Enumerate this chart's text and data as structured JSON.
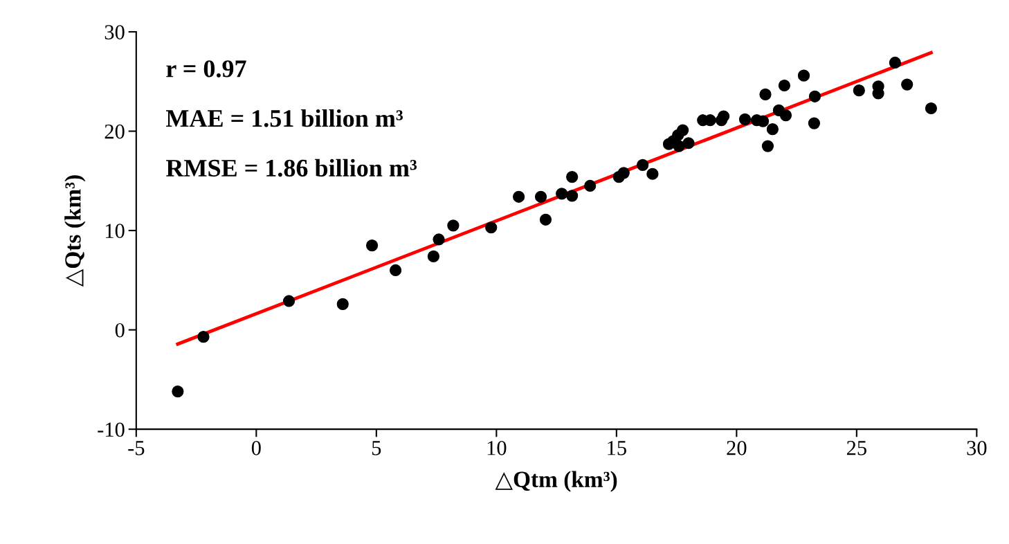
{
  "chart_data": {
    "type": "scatter",
    "xlabel": "△Qtm (km³)",
    "ylabel": "△Qts (km³)",
    "xlim": [
      -5,
      30
    ],
    "xticks": [
      -5,
      0,
      5,
      10,
      15,
      20,
      25,
      30
    ],
    "ylim": [
      -10,
      30
    ],
    "yticks": [
      -10,
      0,
      10,
      20,
      30
    ],
    "grid": false,
    "legend": false,
    "series": [
      {
        "marker": "circle",
        "color": "#000000",
        "x": [
          -3.27,
          -2.2,
          1.36,
          3.6,
          4.82,
          5.8,
          7.38,
          7.6,
          8.2,
          9.78,
          10.93,
          11.85,
          12.05,
          12.72,
          13.15,
          13.15,
          13.9,
          15.1,
          15.3,
          16.09,
          16.5,
          17.18,
          17.36,
          17.56,
          17.76,
          17.6,
          18.0,
          18.6,
          18.9,
          19.37,
          19.46,
          20.35,
          20.84,
          21.1,
          21.2,
          21.3,
          21.5,
          21.76,
          21.99,
          22.05,
          22.8,
          23.26,
          23.23,
          25.1,
          25.9,
          25.9,
          26.6,
          27.1,
          28.1
        ],
        "values": [
          -6.2,
          -0.7,
          2.9,
          2.6,
          8.5,
          6.0,
          7.4,
          9.1,
          10.5,
          10.3,
          13.4,
          13.4,
          11.1,
          13.7,
          13.5,
          15.4,
          14.5,
          15.4,
          15.8,
          16.6,
          15.7,
          18.7,
          19.0,
          19.6,
          20.1,
          18.5,
          18.8,
          21.1,
          21.1,
          21.1,
          21.5,
          21.2,
          21.1,
          21.0,
          23.7,
          18.5,
          20.2,
          22.1,
          24.6,
          21.6,
          25.6,
          23.5,
          20.8,
          24.1,
          24.5,
          23.8,
          26.9,
          24.7,
          22.3
        ]
      },
      {
        "type": "line",
        "marker": "none",
        "color": "#ff0000",
        "x": [
          -3.27,
          28.1
        ],
        "values": [
          -1.43,
          27.9
        ]
      }
    ],
    "annotations": [
      "r = 0.97",
      "MAE = 1.51 billion m³",
      "RMSE = 1.86 billion m³"
    ]
  }
}
